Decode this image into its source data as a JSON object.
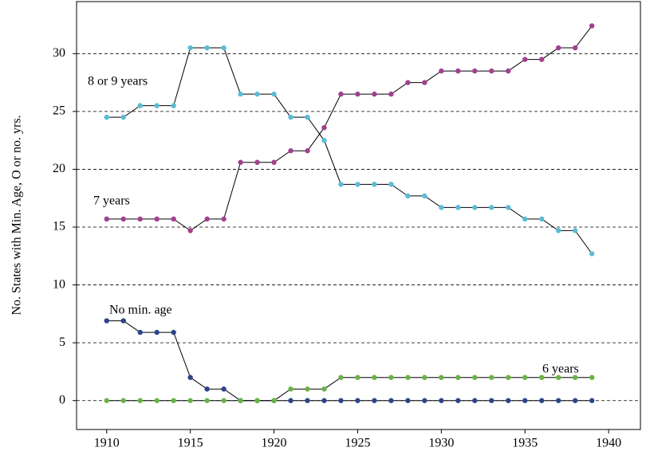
{
  "chart_data": {
    "type": "line",
    "y_label": "No. States with Min. Age, O or no. yrs.",
    "x": [
      1910,
      1911,
      1912,
      1913,
      1914,
      1915,
      1916,
      1917,
      1918,
      1919,
      1920,
      1921,
      1922,
      1923,
      1924,
      1925,
      1926,
      1927,
      1928,
      1929,
      1930,
      1931,
      1932,
      1933,
      1934,
      1935,
      1936,
      1937,
      1938,
      1939
    ],
    "line_color": "#000000",
    "series": [
      {
        "name": "8 or 9 years",
        "color": "#5bbcd6",
        "values": [
          24.5,
          24.5,
          25.5,
          25.5,
          25.5,
          30.5,
          30.5,
          30.5,
          26.5,
          26.5,
          26.5,
          24.5,
          24.5,
          22.5,
          18.7,
          18.7,
          18.7,
          18.7,
          17.7,
          17.7,
          16.7,
          16.7,
          16.7,
          16.7,
          16.7,
          15.7,
          15.7,
          14.7,
          14.7,
          12.7
        ]
      },
      {
        "name": "7 years",
        "color": "#a2408f",
        "values": [
          15.7,
          15.7,
          15.7,
          15.7,
          15.7,
          14.7,
          15.7,
          15.7,
          20.6,
          20.6,
          20.6,
          21.6,
          21.6,
          23.6,
          26.5,
          26.5,
          26.5,
          26.5,
          27.5,
          27.5,
          28.5,
          28.5,
          28.5,
          28.5,
          28.5,
          29.5,
          29.5,
          30.5,
          30.5,
          32.4
        ]
      },
      {
        "name": "No min. age",
        "color": "#2c4589",
        "values": [
          6.9,
          6.9,
          5.9,
          5.9,
          5.9,
          2,
          1,
          1,
          0,
          0,
          0,
          0,
          0,
          0,
          0,
          0,
          0,
          0,
          0,
          0,
          0,
          0,
          0,
          0,
          0,
          0,
          0,
          0,
          0,
          0
        ]
      },
      {
        "name": "6 years",
        "color": "#69b345",
        "values": [
          0,
          0,
          0,
          0,
          0,
          0,
          0,
          0,
          0,
          0,
          0,
          1,
          1,
          1,
          2,
          2,
          2,
          2,
          2,
          2,
          2,
          2,
          2,
          2,
          2,
          2,
          2,
          2,
          2,
          2
        ]
      }
    ],
    "xlim": [
      1908.2,
      1941.9
    ],
    "xticks": [
      1910,
      1915,
      1920,
      1925,
      1930,
      1935,
      1940
    ],
    "ylim": [
      -2.5,
      34.5
    ],
    "yticks": [
      0,
      5,
      10,
      15,
      20,
      25,
      30
    ],
    "grid": true
  }
}
